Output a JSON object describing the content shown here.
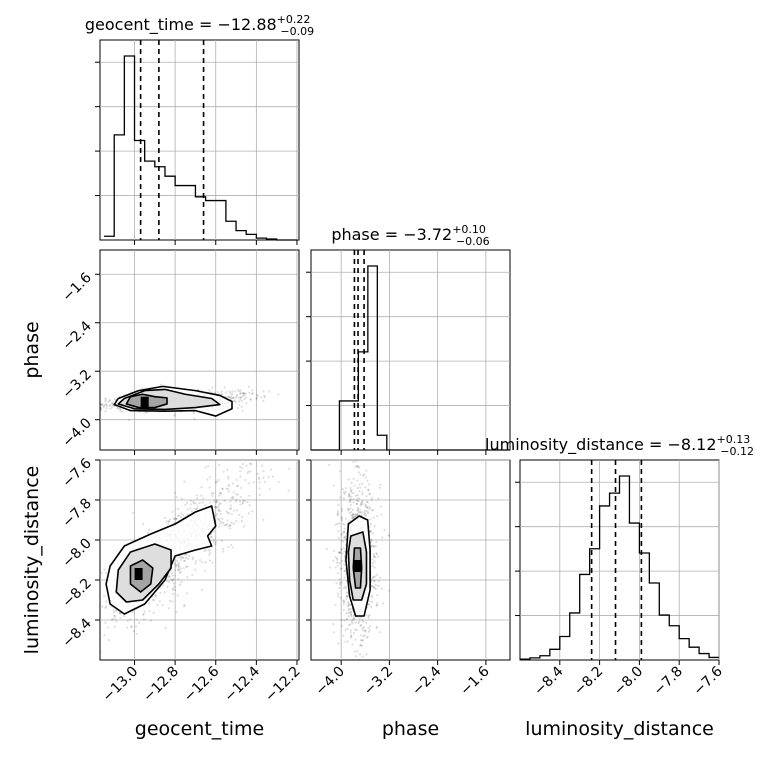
{
  "chart_data": {
    "type": "corner",
    "parameters": [
      {
        "name": "geocent_time",
        "range": [
          -13.17,
          -12.19
        ],
        "ticks": [
          -13.0,
          -12.8,
          -12.6,
          -12.4,
          -12.2
        ],
        "tick_labels": [
          "−13.0",
          "−12.8",
          "−12.6",
          "−12.4",
          "−12.2"
        ],
        "title_prefix": "geocent_time = −12.88",
        "title_sup": "+0.22",
        "title_sub": "−0.09",
        "quantiles": [
          -12.97,
          -12.88,
          -12.66
        ],
        "hist_edges": [
          -13.15,
          -12.2
        ],
        "hist_counts": [
          0.2,
          5.6,
          9.8,
          5.3,
          4.2,
          3.9,
          3.4,
          2.9,
          2.9,
          2.3,
          2.1,
          2.1,
          1.0,
          0.5,
          0.3,
          0.1,
          0.05,
          0.0,
          0.0
        ]
      },
      {
        "name": "phase",
        "range": [
          -4.5,
          -1.2
        ],
        "ticks": [
          -4.0,
          -3.2,
          -2.4,
          -1.6
        ],
        "tick_labels": [
          "−4.0",
          "−3.2",
          "−2.4",
          "−1.6"
        ],
        "title_prefix": "phase = −3.72",
        "title_sup": "+0.10",
        "title_sub": "−0.06",
        "quantiles": [
          -3.78,
          -3.72,
          -3.62
        ],
        "hist_edges": [
          -4.5,
          -1.2
        ],
        "hist_counts": [
          0,
          0,
          0,
          0.2,
          0.2,
          0.4,
          0.75,
          0.06,
          0,
          0,
          0,
          0,
          0,
          0,
          0,
          0,
          0,
          0,
          0,
          0,
          0
        ]
      },
      {
        "name": "luminosity_distance",
        "range": [
          -8.6,
          -7.6
        ],
        "ticks": [
          -8.4,
          -8.2,
          -8.0,
          -7.8,
          -7.6
        ],
        "tick_labels": [
          "−8.4",
          "−8.2",
          "−8.0",
          "−7.8",
          "−7.6"
        ],
        "title_prefix": "luminosity_distance = −8.12",
        "title_sup": "+0.13",
        "title_sub": "−0.12",
        "quantiles": [
          -8.24,
          -8.12,
          -7.99
        ],
        "hist_edges": [
          -8.6,
          -7.6
        ],
        "hist_counts": [
          0.02,
          0.05,
          0.1,
          0.25,
          0.55,
          1.1,
          2.0,
          2.6,
          3.6,
          3.9,
          4.3,
          3.2,
          2.5,
          1.8,
          1.05,
          0.8,
          0.5,
          0.3,
          0.15,
          0.06
        ]
      }
    ],
    "pairs": [
      {
        "x": "geocent_time",
        "y": "phase",
        "core": {
          "x": -12.95,
          "y": -3.72
        },
        "contours": [
          [
            [
              -13.02,
              -3.62
            ],
            [
              -12.96,
              -3.58
            ],
            [
              -12.9,
              -3.62
            ],
            [
              -12.84,
              -3.64
            ],
            [
              -12.84,
              -3.74
            ],
            [
              -12.9,
              -3.8
            ],
            [
              -12.98,
              -3.8
            ],
            [
              -13.04,
              -3.74
            ]
          ],
          [
            [
              -13.05,
              -3.65
            ],
            [
              -12.95,
              -3.52
            ],
            [
              -12.85,
              -3.5
            ],
            [
              -12.75,
              -3.58
            ],
            [
              -12.62,
              -3.65
            ],
            [
              -12.58,
              -3.75
            ],
            [
              -12.7,
              -3.8
            ],
            [
              -12.85,
              -3.83
            ],
            [
              -13.0,
              -3.82
            ],
            [
              -13.08,
              -3.74
            ]
          ],
          [
            [
              -13.08,
              -3.65
            ],
            [
              -12.98,
              -3.52
            ],
            [
              -12.86,
              -3.45
            ],
            [
              -12.7,
              -3.52
            ],
            [
              -12.58,
              -3.6
            ],
            [
              -12.52,
              -3.7
            ],
            [
              -12.52,
              -3.82
            ],
            [
              -12.6,
              -3.94
            ],
            [
              -12.7,
              -3.85
            ],
            [
              -12.85,
              -3.86
            ],
            [
              -13.02,
              -3.85
            ],
            [
              -13.1,
              -3.75
            ]
          ]
        ],
        "scatter_center": [
          -12.8,
          -3.7
        ],
        "scatter_spread": [
          0.17,
          0.14
        ]
      },
      {
        "x": "geocent_time",
        "y": "luminosity_distance",
        "core": {
          "x": -12.98,
          "y": -8.17
        },
        "contours": [
          [
            [
              -13.02,
              -8.13
            ],
            [
              -12.96,
              -8.1
            ],
            [
              -12.91,
              -8.14
            ],
            [
              -12.92,
              -8.22
            ],
            [
              -12.97,
              -8.26
            ],
            [
              -13.02,
              -8.22
            ]
          ],
          [
            [
              -13.08,
              -8.15
            ],
            [
              -13.02,
              -8.06
            ],
            [
              -12.9,
              -8.02
            ],
            [
              -12.82,
              -8.05
            ],
            [
              -12.82,
              -8.14
            ],
            [
              -12.88,
              -8.22
            ],
            [
              -12.96,
              -8.3
            ],
            [
              -13.04,
              -8.31
            ],
            [
              -13.09,
              -8.26
            ]
          ],
          [
            [
              -13.12,
              -8.13
            ],
            [
              -13.05,
              -8.03
            ],
            [
              -12.92,
              -7.97
            ],
            [
              -12.8,
              -7.92
            ],
            [
              -12.7,
              -7.86
            ],
            [
              -12.62,
              -7.83
            ],
            [
              -12.6,
              -7.93
            ],
            [
              -12.64,
              -7.98
            ],
            [
              -12.62,
              -8.03
            ],
            [
              -12.7,
              -8.05
            ],
            [
              -12.8,
              -8.08
            ],
            [
              -12.85,
              -8.2
            ],
            [
              -12.95,
              -8.32
            ],
            [
              -13.05,
              -8.37
            ],
            [
              -13.12,
              -8.32
            ],
            [
              -13.14,
              -8.22
            ]
          ]
        ],
        "scatter_center": [
          -12.8,
          -8.05
        ],
        "scatter_spread": [
          0.2,
          0.2
        ]
      },
      {
        "x": "phase",
        "y": "luminosity_distance",
        "core": {
          "x": -3.72,
          "y": -8.13
        },
        "contours": [
          [
            [
              -3.78,
              -8.04
            ],
            [
              -3.68,
              -8.04
            ],
            [
              -3.66,
              -8.14
            ],
            [
              -3.68,
              -8.24
            ],
            [
              -3.76,
              -8.24
            ],
            [
              -3.8,
              -8.14
            ]
          ],
          [
            [
              -3.84,
              -7.98
            ],
            [
              -3.64,
              -7.96
            ],
            [
              -3.58,
              -8.06
            ],
            [
              -3.58,
              -8.22
            ],
            [
              -3.66,
              -8.3
            ],
            [
              -3.8,
              -8.3
            ],
            [
              -3.86,
              -8.2
            ],
            [
              -3.88,
              -8.06
            ]
          ],
          [
            [
              -3.88,
              -7.92
            ],
            [
              -3.7,
              -7.88
            ],
            [
              -3.56,
              -7.9
            ],
            [
              -3.52,
              -8.05
            ],
            [
              -3.52,
              -8.25
            ],
            [
              -3.62,
              -8.38
            ],
            [
              -3.76,
              -8.38
            ],
            [
              -3.86,
              -8.28
            ],
            [
              -3.92,
              -8.1
            ]
          ]
        ],
        "scatter_center": [
          -3.72,
          -8.1
        ],
        "scatter_spread": [
          0.16,
          0.22
        ]
      }
    ],
    "grid": true,
    "quantile_style": "dashed"
  }
}
